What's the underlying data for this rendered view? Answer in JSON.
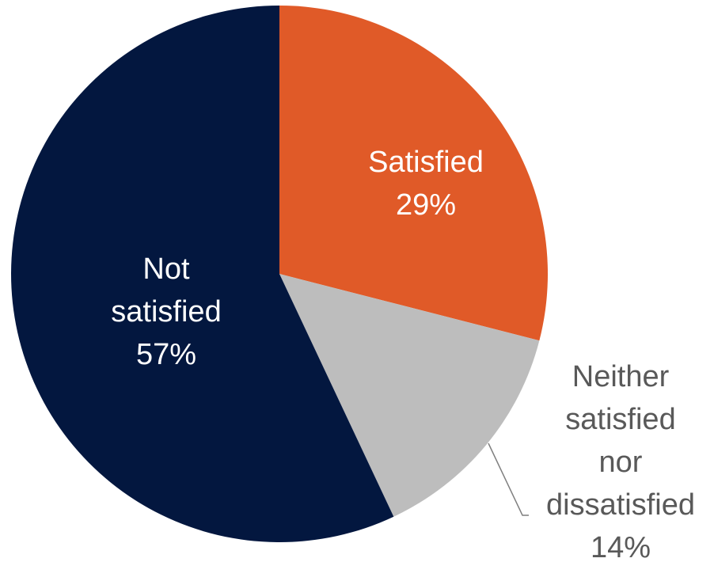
{
  "chart_data": {
    "type": "pie",
    "title": "",
    "legend": "none",
    "start_angle_deg": 0,
    "direction": "clockwise",
    "slices": [
      {
        "label_lines": [
          "Satisfied"
        ],
        "value": 29,
        "value_label": "29%",
        "color": "#e05a28",
        "label_color": "#ffffff"
      },
      {
        "label_lines": [
          "Neither",
          "satisfied",
          "nor",
          "dissatisfied"
        ],
        "value": 14,
        "value_label": "14%",
        "color": "#bdbdbd",
        "label_color": "#595959"
      },
      {
        "label_lines": [
          "Not",
          "satisfied"
        ],
        "value": 57,
        "value_label": "57%",
        "color": "#03173f",
        "label_color": "#ffffff"
      }
    ]
  }
}
